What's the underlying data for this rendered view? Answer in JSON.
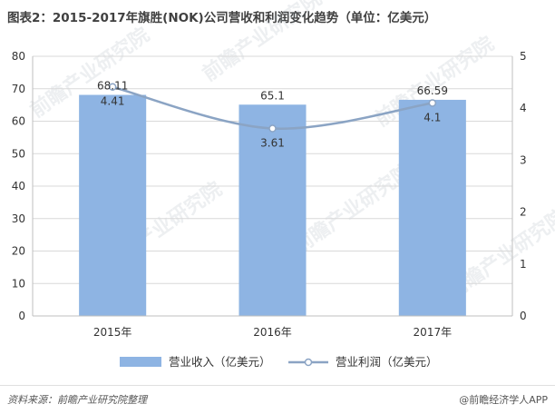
{
  "title": "图表2：2015-2017年旗胜(NOK)公司营收和利润变化趋势（单位：亿美元）",
  "footer": {
    "source": "资料来源：前瞻产业研究院整理",
    "brand": "@前瞻经济学人APP"
  },
  "watermark": "前瞻产业研究院",
  "colors": {
    "bar": "#8eb4e3",
    "line": "#8ba4c4",
    "grid": "#d9d9d9",
    "axis": "#bfbfbf"
  },
  "chart_data": {
    "type": "bar",
    "categories": [
      "2015年",
      "2016年",
      "2017年"
    ],
    "ylim": [
      0,
      80
    ],
    "y_ticks": [
      0,
      10,
      20,
      30,
      40,
      50,
      60,
      70,
      80
    ],
    "y2lim": [
      0,
      5
    ],
    "y2_ticks": [
      0,
      1,
      2,
      3,
      4,
      5
    ],
    "grid": true,
    "legend_position": "bottom",
    "series": [
      {
        "name": "营业收入（亿美元）",
        "type": "bar",
        "axis": "left",
        "values": [
          68.11,
          65.1,
          66.59
        ]
      },
      {
        "name": "营业利润（亿美元）",
        "type": "line",
        "axis": "right",
        "values": [
          4.41,
          3.61,
          4.1
        ]
      }
    ]
  }
}
